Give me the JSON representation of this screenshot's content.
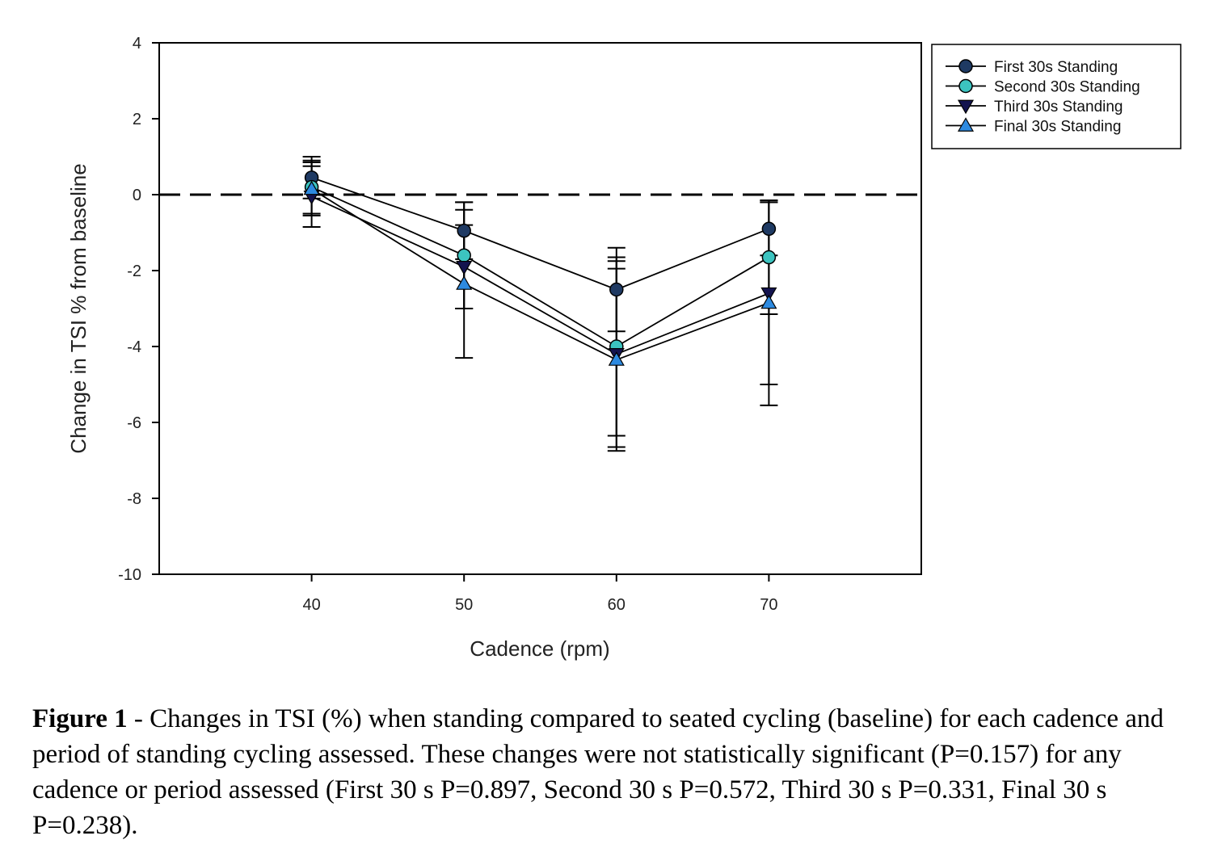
{
  "chart_data": {
    "type": "line",
    "xlabel": "Cadence (rpm)",
    "ylabel": "Change in TSI % from baseline",
    "x": [
      40,
      50,
      60,
      70
    ],
    "xlim": [
      30,
      80
    ],
    "ylim": [
      -10,
      4
    ],
    "xticks": [
      "40",
      "50",
      "60",
      "70"
    ],
    "yticks": [
      "4",
      "2",
      "0",
      "-2",
      "-4",
      "-6",
      "-8",
      "-10"
    ],
    "reference_line": {
      "y": 0,
      "style": "dashed"
    },
    "legend_position": "outside-top-right",
    "series": [
      {
        "name": "First 30s Standing",
        "marker": "circle",
        "color": "#1f3a63",
        "values": [
          0.45,
          -0.95,
          -2.5,
          -0.9
        ],
        "error": [
          0.55,
          0.75,
          1.1,
          0.7
        ]
      },
      {
        "name": "Second 30s Standing",
        "marker": "circle",
        "color": "#3cc4c0",
        "values": [
          0.2,
          -1.6,
          -4.0,
          -1.65
        ],
        "error": [
          0.7,
          1.4,
          2.35,
          1.5
        ]
      },
      {
        "name": "Third 30s Standing",
        "marker": "triangle-down",
        "color": "#14144f",
        "values": [
          -0.05,
          -1.9,
          -4.2,
          -2.6
        ],
        "error": [
          0.8,
          1.1,
          2.45,
          2.4
        ]
      },
      {
        "name": "Final 30s Standing",
        "marker": "triangle-up",
        "color": "#2d8ae0",
        "values": [
          0.15,
          -2.35,
          -4.35,
          -2.85
        ],
        "error": [
          0.7,
          1.95,
          2.4,
          2.7
        ]
      }
    ]
  },
  "caption": {
    "label": "Figure 1",
    "text": " - Changes in TSI (%) when standing compared to seated cycling (baseline) for each cadence and period of standing cycling assessed. These changes were not statistically significant (P=0.157) for any cadence or period assessed (First 30 s P=0.897, Second 30 s P=0.572, Third 30 s P=0.331, Final 30 s P=0.238)."
  }
}
